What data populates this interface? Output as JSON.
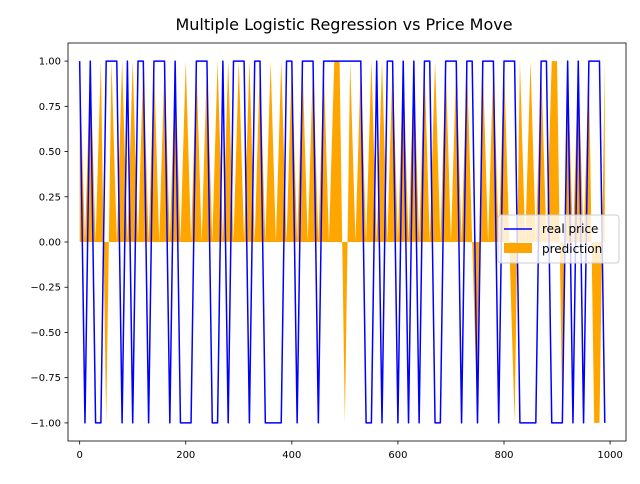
{
  "chart_data": {
    "type": "line",
    "title": "Multiple Logistic Regression vs Price Move",
    "xlabel": "",
    "ylabel": "",
    "xlim": [
      -22,
      1030
    ],
    "ylim": [
      -1.1,
      1.1
    ],
    "x_ticks": [
      0,
      200,
      400,
      600,
      800,
      1000
    ],
    "x_tick_labels": [
      "0",
      "200",
      "400",
      "600",
      "800",
      "1000"
    ],
    "y_ticks": [
      1.0,
      0.75,
      0.5,
      0.25,
      0.0,
      -0.25,
      -0.5,
      -0.75,
      -1.0
    ],
    "y_tick_labels": [
      "1.00",
      "0.75",
      "0.50",
      "0.25",
      "0.00",
      "−0.25",
      "−0.50",
      "−0.75",
      "−1.00"
    ],
    "grid": false,
    "legend_position": "center-right",
    "series": [
      {
        "name": "real price",
        "kind": "line",
        "color": "#0000ff",
        "x": [
          0,
          10,
          20,
          30,
          40,
          50,
          60,
          70,
          80,
          90,
          100,
          110,
          120,
          130,
          140,
          150,
          160,
          170,
          180,
          190,
          200,
          210,
          220,
          230,
          240,
          250,
          260,
          270,
          280,
          290,
          300,
          310,
          320,
          330,
          340,
          350,
          360,
          370,
          380,
          390,
          400,
          410,
          420,
          430,
          440,
          450,
          460,
          470,
          480,
          490,
          500,
          510,
          520,
          530,
          540,
          550,
          560,
          570,
          580,
          590,
          600,
          610,
          620,
          630,
          640,
          650,
          660,
          670,
          680,
          690,
          700,
          710,
          720,
          730,
          740,
          750,
          760,
          770,
          780,
          790,
          800,
          810,
          820,
          830,
          840,
          850,
          860,
          870,
          880,
          890,
          900,
          910,
          920,
          930,
          940,
          950,
          960,
          970,
          980,
          990
        ],
        "y": [
          1,
          -1,
          1,
          -1,
          -1,
          1,
          1,
          1,
          -1,
          1,
          -1,
          1,
          1,
          -1,
          1,
          1,
          1,
          -1,
          1,
          -1,
          -1,
          -1,
          1,
          1,
          1,
          -1,
          -1,
          1,
          -1,
          1,
          1,
          1,
          -1,
          1,
          1,
          -1,
          -1,
          -1,
          -1,
          1,
          1,
          -1,
          1,
          1,
          1,
          -1,
          1,
          1,
          1,
          1,
          1,
          1,
          1,
          1,
          -1,
          -1,
          1,
          -1,
          1,
          1,
          -1,
          1,
          -1,
          1,
          -1,
          1,
          1,
          -1,
          -1,
          1,
          1,
          1,
          -1,
          1,
          1,
          -1,
          1,
          1,
          1,
          -1,
          1,
          1,
          1,
          -1,
          -1,
          -1,
          -1,
          1,
          1,
          -1,
          -1,
          -1,
          1,
          -1,
          1,
          -1,
          1,
          1,
          1,
          -1
        ]
      },
      {
        "name": "prediction",
        "kind": "fill",
        "color": "#ffa500",
        "x": [
          0,
          10,
          20,
          30,
          40,
          50,
          60,
          70,
          80,
          90,
          100,
          110,
          120,
          130,
          140,
          150,
          160,
          170,
          180,
          190,
          200,
          210,
          220,
          230,
          240,
          250,
          260,
          270,
          280,
          290,
          300,
          310,
          320,
          330,
          340,
          350,
          360,
          370,
          380,
          390,
          400,
          410,
          420,
          430,
          440,
          450,
          460,
          470,
          480,
          490,
          500,
          510,
          520,
          530,
          540,
          550,
          560,
          570,
          580,
          590,
          600,
          610,
          620,
          630,
          640,
          650,
          660,
          670,
          680,
          690,
          700,
          710,
          720,
          730,
          740,
          750,
          760,
          770,
          780,
          790,
          800,
          810,
          820,
          830,
          840,
          850,
          860,
          870,
          880,
          890,
          900,
          910,
          920,
          930,
          940,
          950,
          960,
          970,
          980,
          990
        ],
        "y": [
          1,
          0,
          1,
          0,
          1,
          -1,
          1,
          0,
          1,
          0,
          1,
          0,
          1,
          0,
          1,
          0,
          1,
          0,
          1,
          0,
          1,
          0,
          1,
          0,
          1,
          0,
          1,
          0,
          1,
          0,
          1,
          0,
          1,
          0,
          1,
          0,
          1,
          0,
          1,
          0,
          1,
          0,
          1,
          0,
          1,
          0,
          1,
          0,
          1,
          1,
          -1,
          1,
          0,
          1,
          0,
          1,
          0,
          1,
          0,
          1,
          0,
          1,
          0,
          1,
          0,
          1,
          0,
          1,
          0,
          1,
          0,
          1,
          0,
          1,
          0,
          -1,
          1,
          0,
          1,
          0,
          1,
          0,
          -1,
          1,
          0,
          1,
          0,
          1,
          0,
          1,
          1,
          -1,
          1,
          0,
          1,
          0,
          1,
          -1,
          -1,
          1
        ]
      }
    ]
  }
}
